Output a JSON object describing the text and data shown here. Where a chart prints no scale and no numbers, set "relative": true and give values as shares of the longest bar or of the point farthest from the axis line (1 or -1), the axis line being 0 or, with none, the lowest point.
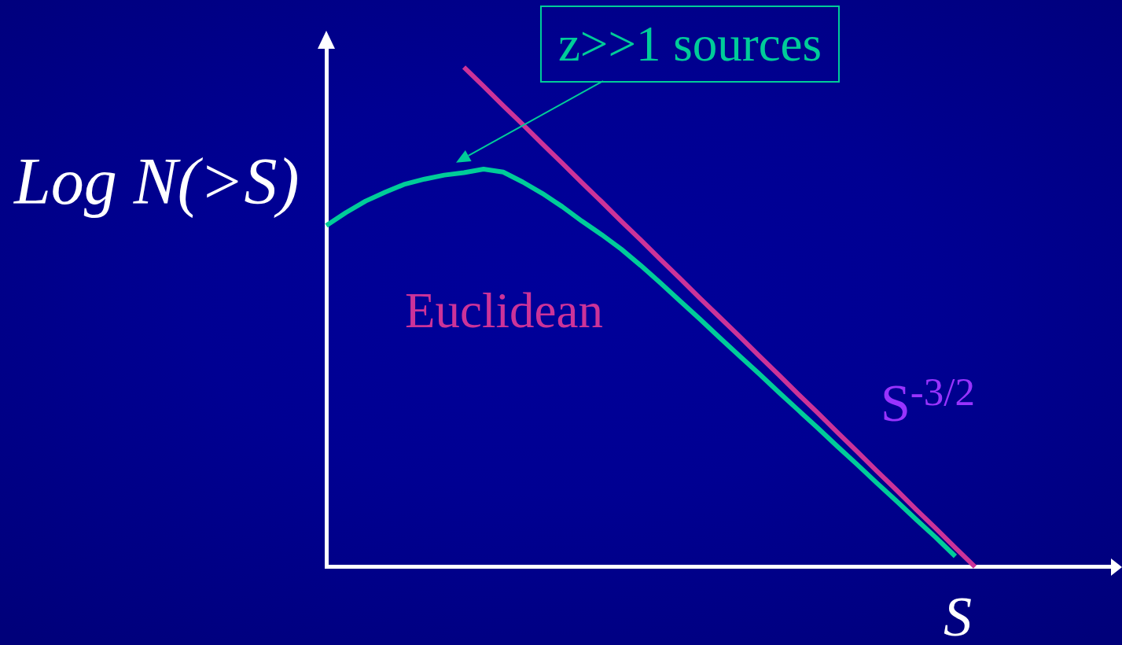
{
  "chart_data": {
    "type": "line",
    "relative": true,
    "xlabel": "S",
    "ylabel": "Log N(>S)",
    "marker": "none",
    "categories": [
      null,
      null,
      null,
      null,
      null,
      null,
      null,
      null,
      null,
      null,
      null,
      null,
      null,
      null,
      null,
      null,
      null,
      null,
      null,
      null,
      null,
      null,
      null,
      null,
      null,
      null,
      null,
      null,
      null,
      null,
      null,
      null,
      null,
      null,
      null,
      null,
      null,
      null,
      null,
      null,
      null
    ],
    "series": [
      {
        "color": "#00cc99",
        "values": [
          0.683,
          0.709,
          0.732,
          0.75,
          0.766,
          0.776,
          0.784,
          0.789,
          0.796,
          0.79,
          0.77,
          0.747,
          0.721,
          0.692,
          0.665,
          0.636,
          0.603,
          0.568,
          0.532,
          0.496,
          0.459,
          0.423,
          0.387,
          0.35,
          0.314,
          0.278,
          0.241,
          0.205,
          0.168,
          0.132,
          0.095,
          0.059,
          0.021,
          null,
          null,
          null,
          null,
          null,
          null,
          null,
          null
        ]
      },
      {
        "name": "Euclidean",
        "color": "#cc3399",
        "values": [
          null,
          null,
          null,
          null,
          null,
          null,
          null,
          1.0,
          0.962,
          0.923,
          0.885,
          0.846,
          0.808,
          0.769,
          0.731,
          0.692,
          0.654,
          0.615,
          0.577,
          0.538,
          0.5,
          0.462,
          0.423,
          0.385,
          0.346,
          0.308,
          0.269,
          0.231,
          0.192,
          0.154,
          0.115,
          0.077,
          0.038,
          0.0,
          null,
          null,
          null,
          null,
          null,
          null,
          null
        ]
      }
    ],
    "annotations": [
      "z>>1 sources",
      "S$^{-3/2}$"
    ]
  }
}
